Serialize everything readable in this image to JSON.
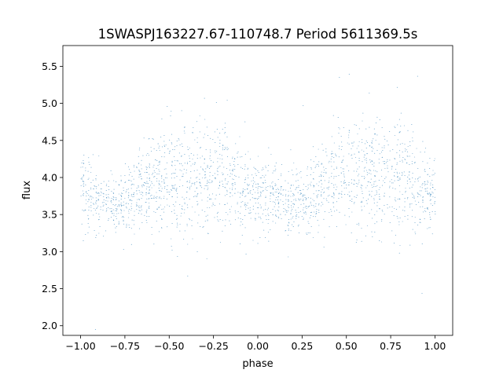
{
  "chart_data": {
    "type": "scatter",
    "title": "1SWASPJ163227.67-110748.7 Period 5611369.5s",
    "xlabel": "phase",
    "ylabel": "flux",
    "xlim": [
      -1.1,
      1.1
    ],
    "ylim": [
      1.87,
      5.78
    ],
    "xticks": [
      -1.0,
      -0.75,
      -0.5,
      -0.25,
      0.0,
      0.25,
      0.5,
      0.75,
      1.0
    ],
    "xtick_labels": [
      "−1.00",
      "−0.75",
      "−0.50",
      "−0.25",
      "0.00",
      "0.25",
      "0.50",
      "0.75",
      "1.00"
    ],
    "yticks": [
      2.0,
      2.5,
      3.0,
      3.5,
      4.0,
      4.5,
      5.0,
      5.5
    ],
    "ytick_labels": [
      "2.0",
      "2.5",
      "3.0",
      "3.5",
      "4.0",
      "4.5",
      "5.0",
      "5.5"
    ],
    "grid": false,
    "legend": "none",
    "series": [
      {
        "marker_color": "#1f77b4",
        "phase_range": [
          -1.0,
          1.0
        ],
        "point_count_estimate": 12000,
        "mean_flux_profile": [
          {
            "phase": -1.0,
            "flux": 3.8
          },
          {
            "phase": -0.9,
            "flux": 3.7
          },
          {
            "phase": -0.82,
            "flux": 3.6
          },
          {
            "phase": -0.7,
            "flux": 3.75
          },
          {
            "phase": -0.6,
            "flux": 3.95
          },
          {
            "phase": -0.45,
            "flux": 4.05
          },
          {
            "phase": -0.3,
            "flux": 3.95
          },
          {
            "phase": -0.2,
            "flux": 4.05
          },
          {
            "phase": -0.1,
            "flux": 3.85
          },
          {
            "phase": 0.0,
            "flux": 3.75
          },
          {
            "phase": 0.1,
            "flux": 3.7
          },
          {
            "phase": 0.18,
            "flux": 3.6
          },
          {
            "phase": 0.3,
            "flux": 3.75
          },
          {
            "phase": 0.4,
            "flux": 3.95
          },
          {
            "phase": 0.55,
            "flux": 4.05
          },
          {
            "phase": 0.7,
            "flux": 3.95
          },
          {
            "phase": 0.8,
            "flux": 4.05
          },
          {
            "phase": 0.9,
            "flux": 3.85
          },
          {
            "phase": 1.0,
            "flux": 3.75
          }
        ]
      }
    ]
  }
}
